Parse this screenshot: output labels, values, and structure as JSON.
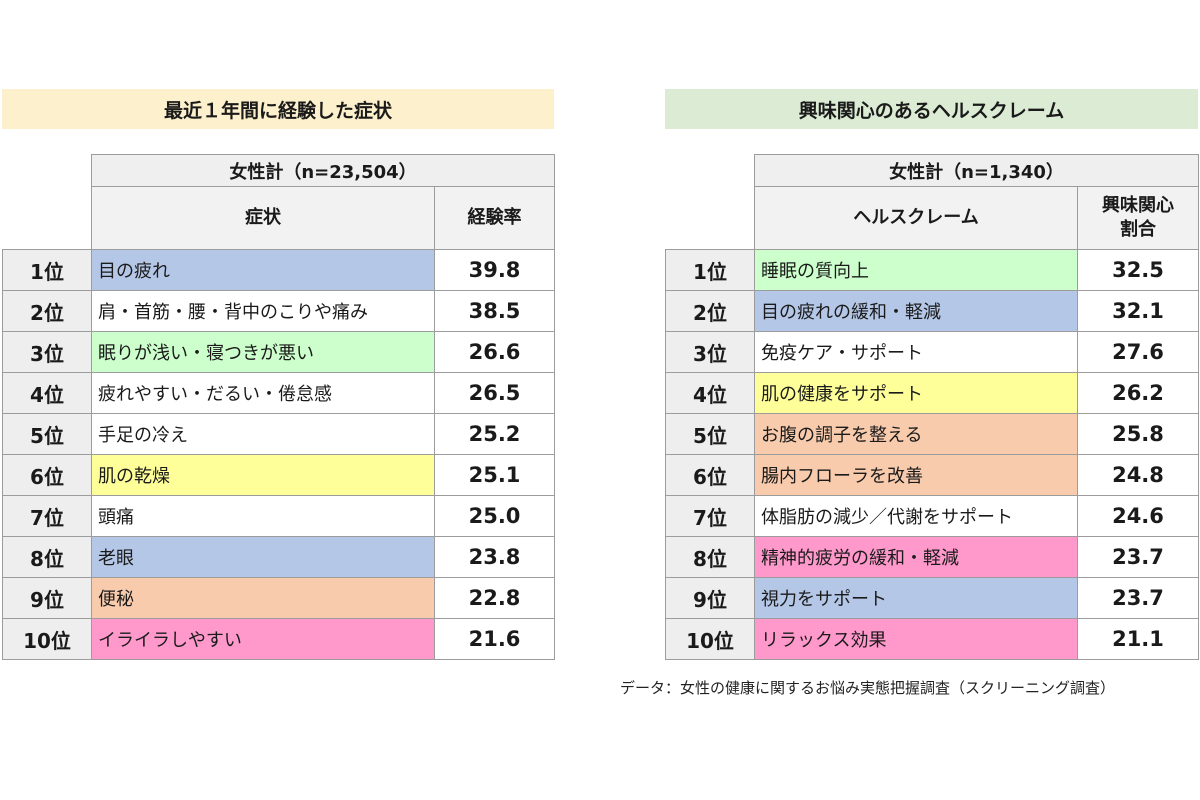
{
  "left": {
    "title": "最近１年間に経験した症状",
    "total_label": "女性計（n=23,504）",
    "col_item": "症状",
    "col_value": "経験率",
    "rows": [
      {
        "rank": "1位",
        "item": "目の疲れ",
        "value": "39.8",
        "color": "#b4c7e7"
      },
      {
        "rank": "2位",
        "item": "肩・首筋・腰・背中のこりや痛み",
        "value": "38.5",
        "color": "#ffffff"
      },
      {
        "rank": "3位",
        "item": "眠りが浅い・寝つきが悪い",
        "value": "26.6",
        "color": "#ccffcc"
      },
      {
        "rank": "4位",
        "item": "疲れやすい・だるい・倦怠感",
        "value": "26.5",
        "color": "#ffffff"
      },
      {
        "rank": "5位",
        "item": "手足の冷え",
        "value": "25.2",
        "color": "#ffffff"
      },
      {
        "rank": "6位",
        "item": "肌の乾燥",
        "value": "25.1",
        "color": "#ffff99"
      },
      {
        "rank": "7位",
        "item": "頭痛",
        "value": "25.0",
        "color": "#ffffff"
      },
      {
        "rank": "8位",
        "item": "老眼",
        "value": "23.8",
        "color": "#b4c7e7"
      },
      {
        "rank": "9位",
        "item": "便秘",
        "value": "22.8",
        "color": "#f8cbad"
      },
      {
        "rank": "10位",
        "item": "イライラしやすい",
        "value": "21.6",
        "color": "#ff99cc"
      }
    ]
  },
  "right": {
    "title": "興味関心のあるヘルスクレーム",
    "total_label": "女性計（n=1,340）",
    "col_item": "ヘルスクレーム",
    "col_value_line1": "興味関心",
    "col_value_line2": "割合",
    "rows": [
      {
        "rank": "1位",
        "item": "睡眠の質向上",
        "value": "32.5",
        "color": "#ccffcc"
      },
      {
        "rank": "2位",
        "item": "目の疲れの緩和・軽減",
        "value": "32.1",
        "color": "#b4c7e7"
      },
      {
        "rank": "3位",
        "item": "免疫ケア・サポート",
        "value": "27.6",
        "color": "#ffffff"
      },
      {
        "rank": "4位",
        "item": "肌の健康をサポート",
        "value": "26.2",
        "color": "#ffff99"
      },
      {
        "rank": "5位",
        "item": "お腹の調子を整える",
        "value": "25.8",
        "color": "#f8cbad"
      },
      {
        "rank": "6位",
        "item": "腸内フローラを改善",
        "value": "24.8",
        "color": "#f8cbad"
      },
      {
        "rank": "7位",
        "item": "体脂肪の減少／代謝をサポート",
        "value": "24.6",
        "color": "#ffffff"
      },
      {
        "rank": "8位",
        "item": "精神的疲労の緩和・軽減",
        "value": "23.7",
        "color": "#ff99cc"
      },
      {
        "rank": "9位",
        "item": "視力をサポート",
        "value": "23.7",
        "color": "#b4c7e7"
      },
      {
        "rank": "10位",
        "item": "リラックス効果",
        "value": "21.1",
        "color": "#ff99cc"
      }
    ]
  },
  "source_note": "データ：女性の健康に関するお悩み実態把握調査（スクリーニング調査）"
}
